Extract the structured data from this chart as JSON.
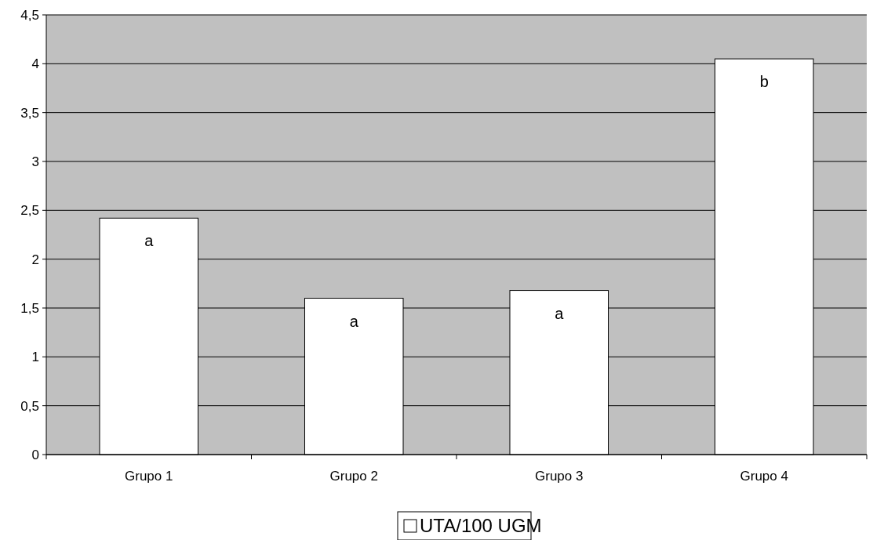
{
  "chart_data": {
    "type": "bar",
    "categories": [
      "Grupo 1",
      "Grupo 2",
      "Grupo 3",
      "Grupo 4"
    ],
    "series": [
      {
        "name": "UTA/100 UGM",
        "color": "#ffffff",
        "values": [
          2.42,
          1.6,
          1.68,
          4.05
        ]
      }
    ],
    "ylim": [
      0,
      4.5
    ],
    "yticks": [
      0,
      {
        "value": 0.5,
        "label": "0,5"
      },
      1,
      {
        "value": 1.5,
        "label": "1,5"
      },
      2,
      {
        "value": 2.5,
        "label": "2,5"
      },
      3,
      {
        "value": 3.5,
        "label": "3,5"
      },
      4,
      {
        "value": 4.5,
        "label": "4,5"
      }
    ],
    "grid": "y",
    "legend": "bottom",
    "annotations": [
      {
        "text": "a",
        "x": "Grupo 1",
        "y": 2.42
      },
      {
        "text": "a",
        "x": "Grupo 2",
        "y": 1.6
      },
      {
        "text": "a",
        "x": "Grupo 3",
        "y": 1.68
      },
      {
        "text": "b",
        "x": "Grupo 4",
        "y": 4.05
      }
    ]
  }
}
